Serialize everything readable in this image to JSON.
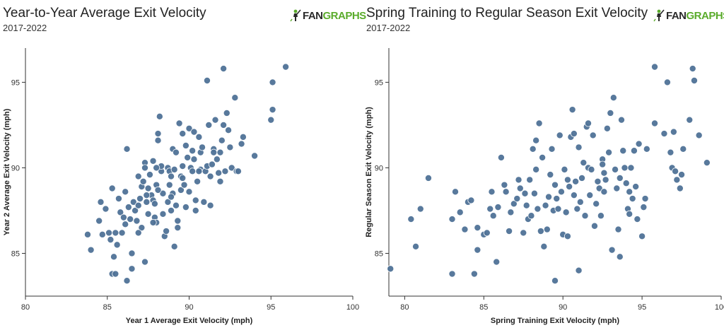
{
  "charts": [
    {
      "title": "Year-to-Year Average Exit Velocity",
      "subtitle": "2017-2022",
      "logo": {
        "part1": "FAN",
        "part2": "GRAPHS",
        "colors": {
          "fan": "#2a2a2a",
          "graphs": "#5aab2b",
          "figure": "#5aab2b"
        }
      }
    },
    {
      "title": "Spring Training to Regular Season Exit Velocity",
      "subtitle": "2017-2022",
      "logo": {
        "part1": "FAN",
        "part2": "GRAPHS",
        "colors": {
          "fan": "#2a2a2a",
          "graphs": "#5aab2b",
          "figure": "#5aab2b"
        }
      }
    }
  ],
  "style": {
    "point_color": "#4f7297",
    "point_stroke": "#ffffff",
    "axis_color": "#333333"
  },
  "chart_data": [
    {
      "type": "scatter",
      "title": "Year-to-Year Average Exit Velocity",
      "subtitle": "2017-2022",
      "xlabel": "Year 1 Average Exit Velocity (mph)",
      "ylabel": "Year 2 Average Exit Velocity (mph)",
      "xlim": [
        80,
        100
      ],
      "ylim": [
        82.5,
        97
      ],
      "xticks": [
        80,
        85,
        90,
        95,
        100
      ],
      "yticks": [
        85,
        90,
        95
      ],
      "grid": false,
      "points": [
        [
          83.8,
          86.1
        ],
        [
          84.0,
          85.2
        ],
        [
          84.5,
          86.9
        ],
        [
          84.6,
          88.0
        ],
        [
          84.7,
          86.1
        ],
        [
          84.9,
          87.6
        ],
        [
          85.1,
          86.2
        ],
        [
          85.2,
          85.8
        ],
        [
          85.3,
          88.8
        ],
        [
          85.3,
          83.8
        ],
        [
          85.4,
          84.8
        ],
        [
          85.5,
          86.2
        ],
        [
          85.5,
          83.8
        ],
        [
          85.6,
          85.5
        ],
        [
          85.7,
          88.2
        ],
        [
          85.8,
          87.4
        ],
        [
          85.9,
          86.2
        ],
        [
          86.0,
          87.1
        ],
        [
          86.1,
          88.6
        ],
        [
          86.2,
          91.1
        ],
        [
          86.2,
          83.4
        ],
        [
          86.3,
          87.7
        ],
        [
          86.4,
          87.0
        ],
        [
          86.5,
          85.0
        ],
        [
          86.5,
          84.1
        ],
        [
          86.6,
          88.0
        ],
        [
          86.7,
          87.5
        ],
        [
          86.8,
          86.9
        ],
        [
          86.9,
          89.5
        ],
        [
          86.9,
          87.8
        ],
        [
          87.0,
          88.2
        ],
        [
          87.1,
          86.5
        ],
        [
          87.1,
          88.9
        ],
        [
          87.2,
          89.2
        ],
        [
          87.3,
          90.3
        ],
        [
          87.3,
          90.0
        ],
        [
          87.4,
          88.0
        ],
        [
          87.5,
          88.8
        ],
        [
          87.5,
          87.3
        ],
        [
          87.6,
          89.6
        ],
        [
          87.7,
          88.4
        ],
        [
          87.8,
          88.1
        ],
        [
          87.8,
          90.4
        ],
        [
          87.9,
          87.9
        ],
        [
          87.9,
          87.1
        ],
        [
          88.0,
          86.8
        ],
        [
          88.0,
          89.0
        ],
        [
          88.1,
          91.6
        ],
        [
          88.1,
          92.0
        ],
        [
          88.2,
          93.0
        ],
        [
          88.3,
          89.8
        ],
        [
          88.3,
          90.1
        ],
        [
          88.4,
          88.5
        ],
        [
          88.4,
          87.3
        ],
        [
          88.5,
          86.0
        ],
        [
          88.6,
          86.3
        ],
        [
          88.7,
          88.0
        ],
        [
          88.7,
          90.0
        ],
        [
          88.8,
          89.8
        ],
        [
          88.9,
          87.5
        ],
        [
          88.9,
          89.5
        ],
        [
          89.0,
          88.5
        ],
        [
          89.0,
          91.1
        ],
        [
          89.1,
          89.9
        ],
        [
          89.2,
          90.9
        ],
        [
          89.2,
          87.8
        ],
        [
          89.3,
          86.5
        ],
        [
          89.3,
          86.9
        ],
        [
          89.4,
          92.6
        ],
        [
          89.5,
          88.7
        ],
        [
          89.5,
          89.5
        ],
        [
          89.6,
          92.0
        ],
        [
          89.6,
          90.1
        ],
        [
          89.7,
          89.0
        ],
        [
          89.8,
          87.7
        ],
        [
          89.8,
          91.3
        ],
        [
          89.9,
          90.6
        ],
        [
          90.0,
          88.6
        ],
        [
          90.0,
          92.3
        ],
        [
          90.1,
          90.0
        ],
        [
          90.2,
          89.8
        ],
        [
          90.2,
          91.0
        ],
        [
          90.3,
          92.1
        ],
        [
          90.4,
          88.1
        ],
        [
          90.4,
          87.5
        ],
        [
          90.5,
          89.2
        ],
        [
          90.6,
          91.8
        ],
        [
          90.7,
          90.9
        ],
        [
          90.7,
          89.9
        ],
        [
          90.8,
          91.2
        ],
        [
          90.9,
          88.0
        ],
        [
          91.0,
          89.8
        ],
        [
          91.1,
          90.1
        ],
        [
          91.1,
          95.1
        ],
        [
          91.2,
          92.5
        ],
        [
          91.3,
          89.5
        ],
        [
          91.4,
          90.2
        ],
        [
          91.5,
          91.1
        ],
        [
          91.5,
          90.9
        ],
        [
          91.6,
          92.8
        ],
        [
          91.7,
          90.5
        ],
        [
          91.8,
          89.7
        ],
        [
          91.9,
          89.2
        ],
        [
          91.9,
          90.9
        ],
        [
          92.0,
          91.6
        ],
        [
          92.1,
          92.5
        ],
        [
          92.2,
          89.8
        ],
        [
          92.3,
          93.2
        ],
        [
          92.4,
          92.2
        ],
        [
          92.5,
          91.2
        ],
        [
          92.6,
          90.0
        ],
        [
          92.8,
          94.1
        ],
        [
          92.9,
          89.8
        ],
        [
          93.0,
          89.8
        ],
        [
          93.2,
          91.4
        ],
        [
          93.3,
          91.8
        ],
        [
          92.1,
          95.8
        ],
        [
          94.0,
          90.7
        ],
        [
          95.0,
          92.8
        ],
        [
          95.1,
          93.4
        ],
        [
          95.1,
          95.0
        ],
        [
          95.9,
          95.9
        ],
        [
          88.0,
          90.0
        ],
        [
          88.8,
          89.0
        ],
        [
          86.9,
          86.2
        ],
        [
          87.4,
          88.4
        ],
        [
          88.1,
          88.7
        ],
        [
          89.6,
          89.4
        ],
        [
          90.6,
          89.8
        ],
        [
          89.1,
          85.4
        ],
        [
          87.3,
          84.5
        ],
        [
          86.1,
          86.7
        ],
        [
          87.8,
          86.8
        ],
        [
          88.9,
          88.3
        ],
        [
          91.3,
          87.8
        ],
        [
          90.3,
          90.5
        ]
      ]
    },
    {
      "type": "scatter",
      "title": "Spring Training to Regular Season Exit Velocity",
      "subtitle": "2017-2022",
      "xlabel": "Spring Training Exit Velocity (mph)",
      "ylabel": "Regular Season Exit Velocity (mph)",
      "xlim": [
        79,
        100
      ],
      "ylim": [
        82.5,
        97
      ],
      "xticks": [
        80,
        85,
        90,
        95,
        100
      ],
      "yticks": [
        85,
        90,
        95
      ],
      "grid": false,
      "points": [
        [
          79.1,
          84.1
        ],
        [
          80.4,
          87.0
        ],
        [
          80.7,
          85.4
        ],
        [
          81.0,
          87.6
        ],
        [
          81.5,
          89.4
        ],
        [
          83.0,
          87.0
        ],
        [
          83.0,
          83.8
        ],
        [
          83.2,
          88.6
        ],
        [
          83.5,
          87.4
        ],
        [
          83.8,
          86.4
        ],
        [
          84.0,
          88.0
        ],
        [
          84.2,
          88.1
        ],
        [
          84.4,
          83.8
        ],
        [
          84.6,
          85.2
        ],
        [
          84.6,
          86.5
        ],
        [
          85.0,
          86.1
        ],
        [
          85.2,
          86.2
        ],
        [
          85.4,
          87.6
        ],
        [
          85.5,
          88.6
        ],
        [
          85.6,
          87.2
        ],
        [
          85.8,
          84.5
        ],
        [
          85.9,
          87.7
        ],
        [
          86.1,
          90.6
        ],
        [
          86.3,
          89.0
        ],
        [
          86.4,
          88.6
        ],
        [
          86.6,
          86.3
        ],
        [
          86.7,
          87.4
        ],
        [
          86.9,
          87.9
        ],
        [
          87.1,
          88.2
        ],
        [
          87.2,
          89.3
        ],
        [
          87.3,
          88.8
        ],
        [
          87.5,
          86.2
        ],
        [
          87.6,
          88.5
        ],
        [
          87.7,
          87.8
        ],
        [
          87.8,
          87.0
        ],
        [
          87.9,
          89.3
        ],
        [
          88.0,
          87.2
        ],
        [
          88.1,
          91.1
        ],
        [
          88.2,
          88.5
        ],
        [
          88.3,
          89.9
        ],
        [
          88.4,
          87.6
        ],
        [
          88.5,
          92.6
        ],
        [
          88.6,
          86.3
        ],
        [
          88.7,
          90.6
        ],
        [
          88.8,
          85.4
        ],
        [
          88.9,
          87.8
        ],
        [
          89.0,
          86.4
        ],
        [
          89.1,
          88.3
        ],
        [
          89.2,
          89.6
        ],
        [
          89.3,
          91.1
        ],
        [
          89.4,
          87.5
        ],
        [
          89.5,
          89.0
        ],
        [
          89.6,
          88.2
        ],
        [
          89.7,
          87.6
        ],
        [
          89.8,
          91.9
        ],
        [
          89.9,
          88.6
        ],
        [
          90.0,
          86.1
        ],
        [
          90.1,
          89.9
        ],
        [
          90.2,
          87.4
        ],
        [
          90.3,
          86.0
        ],
        [
          90.4,
          88.9
        ],
        [
          90.5,
          91.8
        ],
        [
          90.6,
          93.4
        ],
        [
          90.7,
          88.4
        ],
        [
          90.8,
          89.2
        ],
        [
          90.9,
          87.6
        ],
        [
          91.0,
          91.2
        ],
        [
          91.1,
          88.0
        ],
        [
          91.2,
          89.4
        ],
        [
          91.3,
          90.3
        ],
        [
          91.4,
          87.2
        ],
        [
          91.5,
          92.4
        ],
        [
          91.6,
          90.0
        ],
        [
          91.7,
          88.4
        ],
        [
          91.8,
          89.9
        ],
        [
          91.9,
          91.9
        ],
        [
          92.0,
          86.6
        ],
        [
          92.1,
          87.9
        ],
        [
          92.2,
          89.2
        ],
        [
          92.3,
          88.8
        ],
        [
          92.4,
          87.2
        ],
        [
          92.5,
          90.5
        ],
        [
          92.6,
          88.6
        ],
        [
          92.7,
          89.3
        ],
        [
          92.8,
          92.3
        ],
        [
          92.9,
          90.9
        ],
        [
          93.0,
          93.2
        ],
        [
          93.1,
          85.2
        ],
        [
          93.2,
          94.1
        ],
        [
          93.3,
          89.9
        ],
        [
          93.4,
          88.8
        ],
        [
          93.5,
          86.4
        ],
        [
          93.6,
          89.4
        ],
        [
          93.7,
          92.8
        ],
        [
          93.8,
          91.0
        ],
        [
          93.9,
          90.0
        ],
        [
          94.0,
          89.1
        ],
        [
          94.1,
          87.6
        ],
        [
          94.2,
          88.6
        ],
        [
          94.3,
          90.0
        ],
        [
          94.4,
          88.2
        ],
        [
          94.5,
          91.0
        ],
        [
          94.6,
          88.9
        ],
        [
          94.7,
          87.0
        ],
        [
          94.8,
          91.4
        ],
        [
          95.0,
          86.0
        ],
        [
          95.1,
          87.7
        ],
        [
          95.2,
          88.2
        ],
        [
          95.3,
          91.1
        ],
        [
          95.8,
          92.6
        ],
        [
          95.8,
          95.9
        ],
        [
          96.4,
          92.0
        ],
        [
          96.6,
          95.0
        ],
        [
          96.8,
          90.9
        ],
        [
          97.0,
          92.1
        ],
        [
          97.2,
          89.3
        ],
        [
          97.4,
          88.8
        ],
        [
          97.6,
          91.1
        ],
        [
          98.0,
          92.8
        ],
        [
          98.2,
          95.8
        ],
        [
          98.3,
          95.1
        ],
        [
          98.6,
          91.9
        ],
        [
          99.1,
          90.3
        ],
        [
          96.9,
          90.0
        ],
        [
          97.1,
          89.8
        ],
        [
          97.5,
          89.6
        ],
        [
          90.3,
          89.3
        ],
        [
          89.5,
          83.4
        ],
        [
          91.0,
          84.0
        ],
        [
          92.5,
          90.2
        ],
        [
          93.6,
          84.8
        ],
        [
          88.3,
          91.6
        ],
        [
          90.7,
          92.0
        ],
        [
          91.6,
          92.6
        ],
        [
          92.6,
          89.7
        ],
        [
          94.2,
          87.3
        ]
      ]
    }
  ]
}
